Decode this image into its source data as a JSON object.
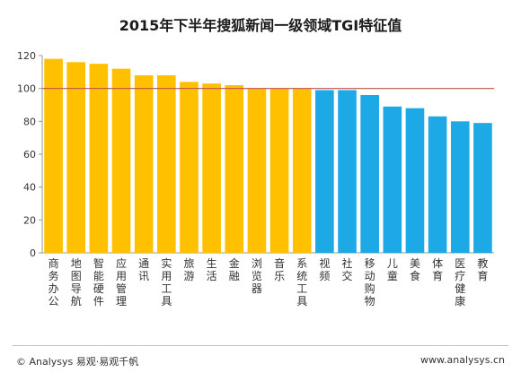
{
  "chart_data": {
    "type": "bar",
    "title": "2015年下半年搜狐新闻一级领域TGI特征值",
    "categories": [
      "商务办公",
      "地图导航",
      "智能硬件",
      "应用管理",
      "通讯",
      "实用工具",
      "旅游",
      "生活",
      "金融",
      "浏览器",
      "音乐",
      "系统工具",
      "视频",
      "社交",
      "移动购物",
      "儿童",
      "美食",
      "体育",
      "医疗健康",
      "教育"
    ],
    "values": [
      118,
      116,
      115,
      112,
      108,
      108,
      104,
      103,
      102,
      100,
      100,
      100,
      99,
      99,
      96,
      89,
      88,
      83,
      80,
      79
    ],
    "series": [
      {
        "values": [
          118,
          116,
          115,
          112,
          108,
          108,
          104,
          103,
          102,
          100,
          100,
          100,
          99,
          99,
          null,
          null,
          null,
          null,
          null,
          null
        ],
        "color": "#FFC000"
      },
      {
        "values": [
          null,
          null,
          null,
          null,
          null,
          null,
          null,
          null,
          null,
          null,
          null,
          null,
          null,
          null,
          96,
          89,
          88,
          83,
          80,
          79
        ],
        "color": "#1CA9E6"
      }
    ],
    "ylim": [
      0,
      120
    ],
    "yticks": [
      0,
      20,
      40,
      60,
      80,
      100,
      120
    ],
    "reference_line": 100,
    "grid": false,
    "legend": "none"
  },
  "colors": {
    "above_100": "#FFC000",
    "below_100": "#1CA9E6",
    "reference_line": "#C0504D"
  },
  "footer": {
    "left": "© Analysys 易观·易观千帆",
    "right": "www.analysys.cn"
  }
}
